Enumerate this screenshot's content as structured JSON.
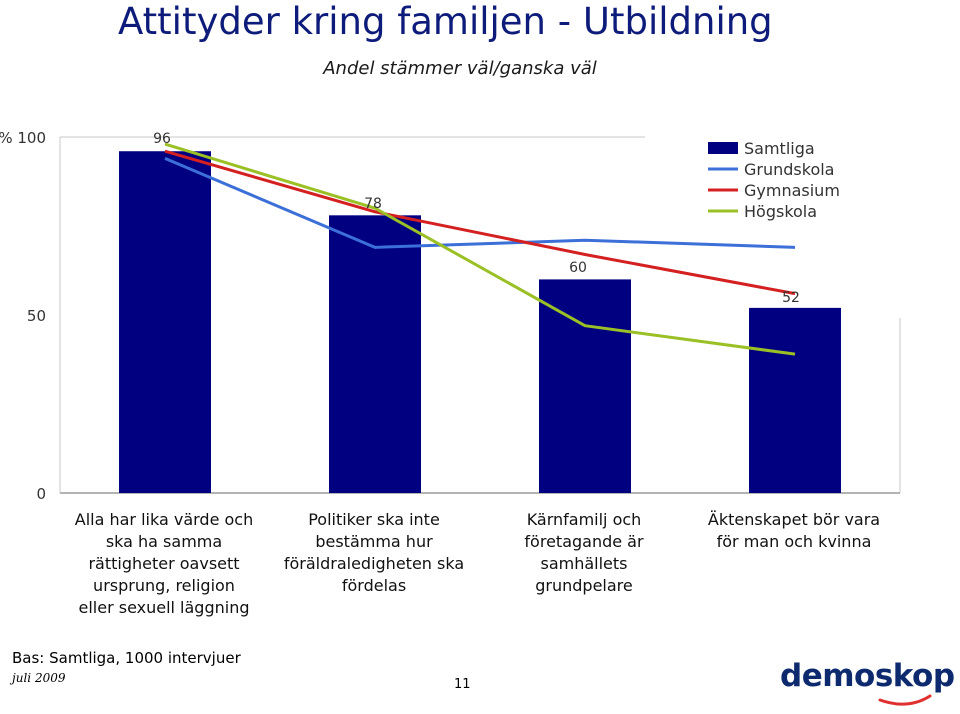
{
  "slide": {
    "title": "Attityder kring familjen - Utbildning",
    "subtitle": "Andel stämmer väl/ganska väl",
    "footer_base": "Bas: Samtliga, 1000 intervjuer",
    "footer_date": "juli 2009",
    "page_number": "11",
    "logo_text": "demoskop"
  },
  "chart_data": {
    "type": "bar",
    "ylim": [
      0,
      100
    ],
    "y_ticks": [
      "0",
      "50",
      "100"
    ],
    "y_unit": "%",
    "categories": [
      [
        "Alla har lika värde och",
        "ska ha samma",
        "rättigheter oavsett",
        "ursprung, religion",
        "eller sexuell läggning"
      ],
      [
        "Politiker ska inte",
        "bestämma hur",
        "föräldraledigheten ska",
        "fördelas"
      ],
      [
        "Kärnfamilj och",
        "företagande är",
        "samhällets",
        "grundpelare"
      ],
      [
        "Äktenskapet bör vara",
        "för man och kvinna"
      ]
    ],
    "bar_series": {
      "name": "Samtliga",
      "color": "#000080",
      "values": [
        96,
        78,
        60,
        52
      ],
      "data_labels": [
        "96",
        "78",
        "60",
        "52"
      ]
    },
    "line_series": [
      {
        "name": "Grundskola",
        "color": "#3c6fd8",
        "values": [
          94,
          69,
          71,
          69
        ]
      },
      {
        "name": "Gymnasium",
        "color": "#d42020",
        "values": [
          96,
          79,
          67,
          56
        ]
      },
      {
        "name": "Högskola",
        "color": "#9ac026",
        "values": [
          98,
          80,
          47,
          39
        ]
      }
    ],
    "legend_position": "top-right"
  }
}
